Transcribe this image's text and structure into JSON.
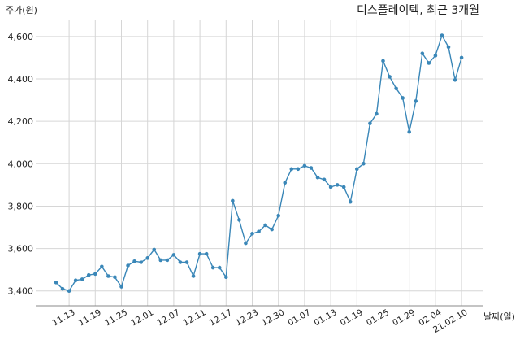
{
  "chart_data": {
    "type": "line",
    "title": "디스플레이텍, 최근 3개월",
    "ylabel": "주가(원)",
    "xlabel": "날짜(일)",
    "ylim": [
      3330,
      4680
    ],
    "yticks": [
      3400,
      3600,
      3800,
      4000,
      4200,
      4400,
      4600
    ],
    "ytick_labels": [
      "3,400",
      "3,600",
      "3,800",
      "4,000",
      "4,200",
      "4,400",
      "4,600"
    ],
    "xtick_labels": [
      "11.13",
      "11.19",
      "11.25",
      "12.01",
      "12.07",
      "12.11",
      "12.17",
      "12.23",
      "12.30",
      "01.07",
      "01.13",
      "01.19",
      "01.25",
      "01.29",
      "02.04",
      "21.02.10"
    ],
    "xtick_index": [
      2,
      6,
      10,
      14,
      18,
      22,
      26,
      30,
      34,
      38,
      42,
      46,
      50,
      54,
      58,
      62
    ],
    "grid": true,
    "line_color": "#3a87b8",
    "series": [
      {
        "values": [
          3440,
          3410,
          3400,
          3450,
          3455,
          3475,
          3480,
          3515,
          3470,
          3465,
          3420,
          3520,
          3540,
          3535,
          3555,
          3595,
          3545,
          3545,
          3570,
          3535,
          3535,
          3470,
          3575,
          3575,
          3510,
          3510,
          3465,
          3825,
          3735,
          3625,
          3670,
          3680,
          3710,
          3690,
          3755,
          3910,
          3975,
          3975,
          3990,
          3980,
          3935,
          3925,
          3890,
          3900,
          3890,
          3820,
          3975,
          4000,
          4190,
          4235,
          4485,
          4410,
          4355,
          4310,
          4150,
          4295,
          4520,
          4475,
          4510,
          4605,
          4550,
          4395,
          4500
        ]
      }
    ]
  }
}
